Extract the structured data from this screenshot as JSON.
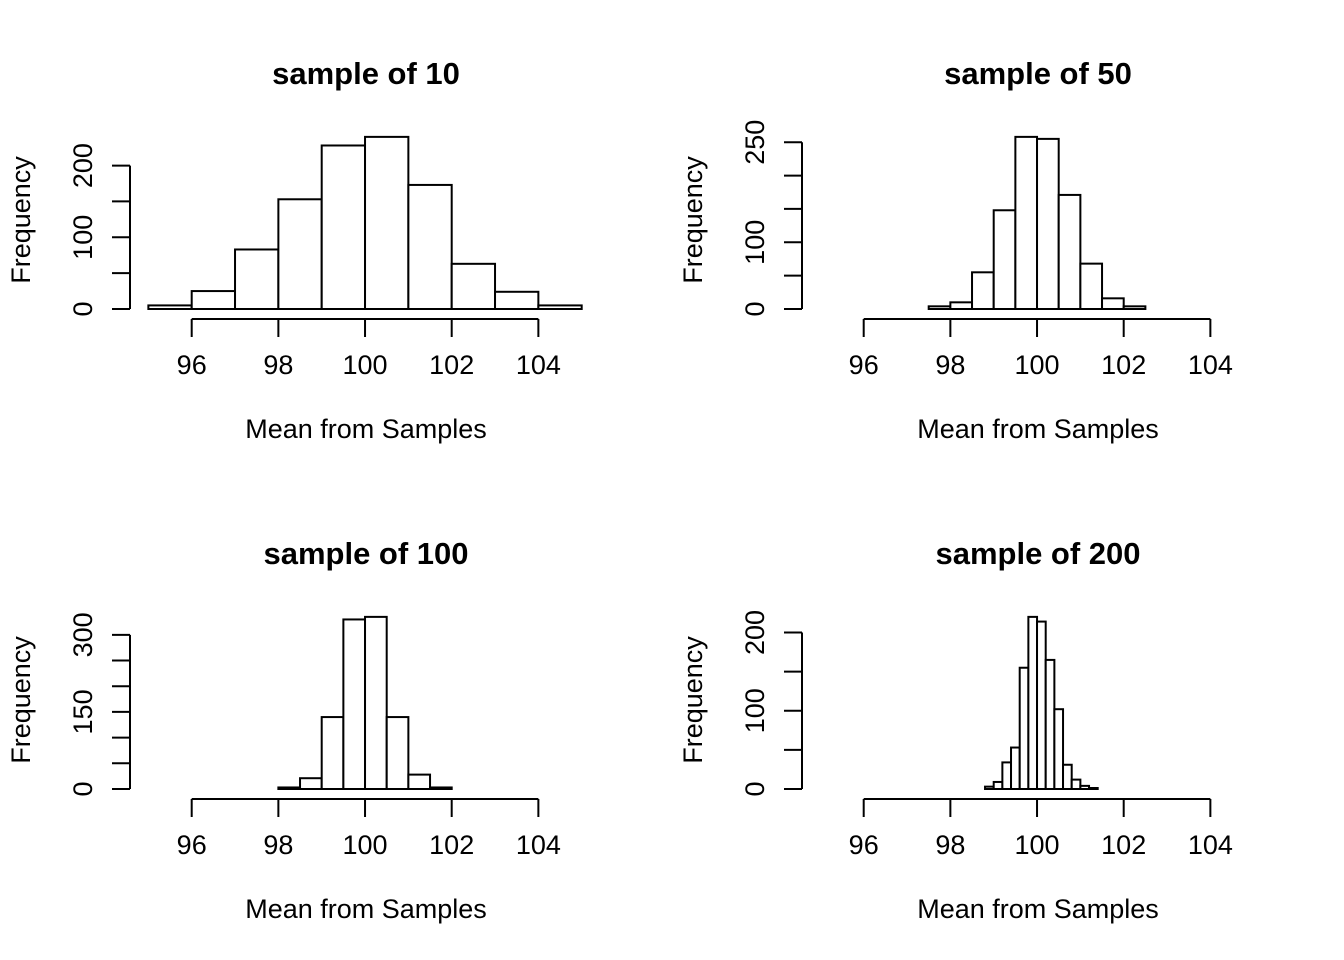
{
  "figure": {
    "background": "#ffffff",
    "ink": "#000000",
    "layout": "2x2 grid of base-R style histograms",
    "grid": false,
    "legend_position": "none"
  },
  "chart_data": [
    {
      "type": "bar",
      "subtype": "histogram",
      "title": "sample of 10",
      "xlabel": "Mean from Samples",
      "ylabel": "Frequency",
      "bin_start": 95,
      "bin_width": 1,
      "counts": [
        5,
        25,
        83,
        153,
        228,
        240,
        173,
        63,
        24,
        5
      ],
      "xlim": [
        95,
        105
      ],
      "ylim": [
        0,
        240
      ],
      "x_ticks": [
        96,
        98,
        100,
        102,
        104
      ],
      "x_tick_labels": [
        "96",
        "98",
        "100",
        "102",
        "104"
      ],
      "y_ticks": [
        0,
        50,
        100,
        150,
        200
      ],
      "y_tick_labels": [
        "0",
        "",
        "100",
        "",
        "200"
      ],
      "bar_fill": "#ffffff",
      "bar_stroke": "#000000",
      "grid": false
    },
    {
      "type": "bar",
      "subtype": "histogram",
      "title": "sample of 50",
      "xlabel": "Mean from Samples",
      "ylabel": "Frequency",
      "bin_start": 97.5,
      "bin_width": 0.5,
      "counts": [
        4,
        10,
        55,
        148,
        258,
        255,
        171,
        68,
        16,
        4
      ],
      "xlim": [
        97.5,
        102.5
      ],
      "ylim": [
        0,
        258
      ],
      "x_ticks": [
        96,
        98,
        100,
        102,
        104
      ],
      "x_tick_labels": [
        "96",
        "98",
        "100",
        "102",
        "104"
      ],
      "y_ticks": [
        0,
        50,
        100,
        150,
        200,
        250
      ],
      "y_tick_labels": [
        "0",
        "",
        "100",
        "",
        "",
        "250"
      ],
      "bar_fill": "#ffffff",
      "bar_stroke": "#000000",
      "grid": false
    },
    {
      "type": "bar",
      "subtype": "histogram",
      "title": "sample of 100",
      "xlabel": "Mean from Samples",
      "ylabel": "Frequency",
      "bin_start": 98,
      "bin_width": 0.5,
      "counts": [
        3,
        21,
        140,
        330,
        335,
        140,
        28,
        3
      ],
      "xlim": [
        98,
        102
      ],
      "ylim": [
        0,
        335
      ],
      "x_ticks": [
        96,
        98,
        100,
        102,
        104
      ],
      "x_tick_labels": [
        "96",
        "98",
        "100",
        "102",
        "104"
      ],
      "y_ticks": [
        0,
        50,
        100,
        150,
        200,
        250,
        300
      ],
      "y_tick_labels": [
        "0",
        "",
        "",
        "150",
        "",
        "",
        "300"
      ],
      "bar_fill": "#ffffff",
      "bar_stroke": "#000000",
      "grid": false
    },
    {
      "type": "bar",
      "subtype": "histogram",
      "title": "sample of 200",
      "xlabel": "Mean from Samples",
      "ylabel": "Frequency",
      "bin_start": 98.8,
      "bin_width": 0.2,
      "counts": [
        3,
        9,
        34,
        53,
        155,
        220,
        214,
        165,
        102,
        31,
        12,
        4,
        1
      ],
      "xlim": [
        98.8,
        101.4
      ],
      "ylim": [
        0,
        220
      ],
      "x_ticks": [
        96,
        98,
        100,
        102,
        104
      ],
      "x_tick_labels": [
        "96",
        "98",
        "100",
        "102",
        "104"
      ],
      "y_ticks": [
        0,
        50,
        100,
        150,
        200
      ],
      "y_tick_labels": [
        "0",
        "",
        "100",
        "",
        "200"
      ],
      "bar_fill": "#ffffff",
      "bar_stroke": "#000000",
      "grid": false
    }
  ]
}
